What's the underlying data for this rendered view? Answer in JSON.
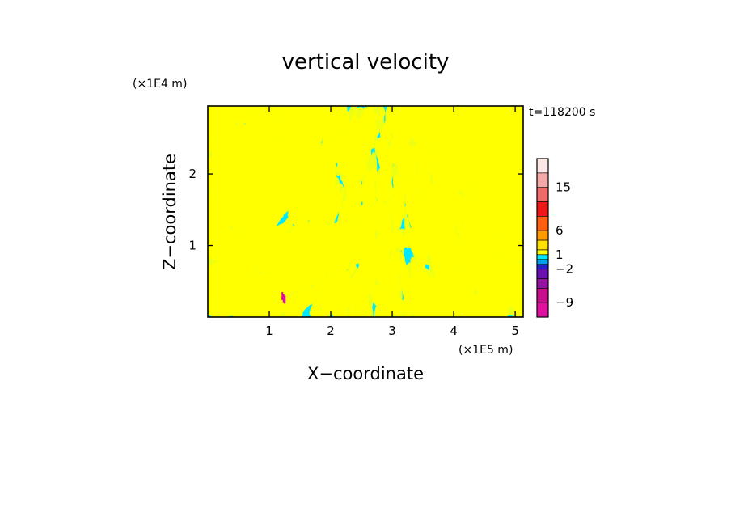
{
  "chart_data": {
    "type": "heatmap",
    "title": "vertical velocity",
    "xlabel": "X−coordinate",
    "ylabel": "Z−coordinate",
    "x_scale_label": "(×1E5 m)",
    "y_scale_label": "(×1E4 m)",
    "time_label": "t=118200 s",
    "xlim": [
      0,
      5.13
    ],
    "ylim": [
      0,
      2.95
    ],
    "x_ticks": [
      1,
      2,
      3,
      4,
      5
    ],
    "y_ticks": [
      1,
      2
    ],
    "x_tick_labels": [
      "1",
      "2",
      "3",
      "4",
      "5"
    ],
    "y_tick_labels": [
      "1",
      "2"
    ],
    "colorbar": {
      "levels": [
        -12,
        -9,
        -6,
        -4,
        -2,
        -1,
        0,
        1,
        2,
        4,
        6,
        9,
        12,
        15,
        18,
        21
      ],
      "colors": [
        "#e0109e",
        "#c8108c",
        "#9a10a0",
        "#6a10b0",
        "#2820c8",
        "#00a0f0",
        "#00e8ff",
        "#ffff00",
        "#ffe000",
        "#ff9a00",
        "#ff6010",
        "#ee1818",
        "#f06a6a",
        "#f5a8a8",
        "#fde6e6"
      ],
      "tick_labels": [
        "15",
        "6",
        "1",
        "−2",
        "−9"
      ],
      "tick_values": [
        15,
        6,
        1,
        -2,
        -9
      ]
    },
    "dominant_values": {
      "positive_color": "#ffff00",
      "negative_color": "#00e8ff",
      "description_free": true
    }
  }
}
